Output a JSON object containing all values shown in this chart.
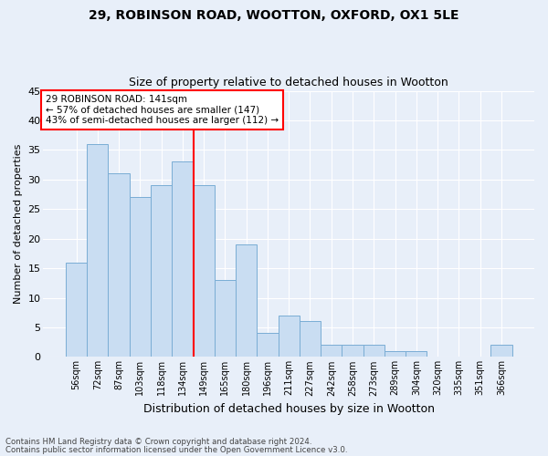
{
  "title1": "29, ROBINSON ROAD, WOOTTON, OXFORD, OX1 5LE",
  "title2": "Size of property relative to detached houses in Wootton",
  "xlabel": "Distribution of detached houses by size in Wootton",
  "ylabel": "Number of detached properties",
  "bar_values": [
    16,
    36,
    31,
    27,
    29,
    33,
    29,
    13,
    19,
    4,
    7,
    6,
    2,
    2,
    2,
    1,
    1,
    0,
    0,
    0,
    2
  ],
  "bar_labels": [
    "56sqm",
    "72sqm",
    "87sqm",
    "103sqm",
    "118sqm",
    "134sqm",
    "149sqm",
    "165sqm",
    "180sqm",
    "196sqm",
    "211sqm",
    "227sqm",
    "242sqm",
    "258sqm",
    "273sqm",
    "289sqm",
    "304sqm",
    "320sqm",
    "335sqm",
    "351sqm",
    "366sqm"
  ],
  "bar_color": "#c9ddf2",
  "bar_edge_color": "#7aadd4",
  "vline_x_index": 6,
  "vline_color": "red",
  "annotation_title": "29 ROBINSON ROAD: 141sqm",
  "annotation_line2": "← 57% of detached houses are smaller (147)",
  "annotation_line3": "43% of semi-detached houses are larger (112) →",
  "annotation_box_color": "white",
  "annotation_box_edge": "red",
  "ylim": [
    0,
    45
  ],
  "yticks": [
    0,
    5,
    10,
    15,
    20,
    25,
    30,
    35,
    40,
    45
  ],
  "footer1": "Contains HM Land Registry data © Crown copyright and database right 2024.",
  "footer2": "Contains public sector information licensed under the Open Government Licence v3.0.",
  "bg_color": "#e8eff9",
  "grid_color": "white",
  "title1_fontsize": 10,
  "title2_fontsize": 9
}
